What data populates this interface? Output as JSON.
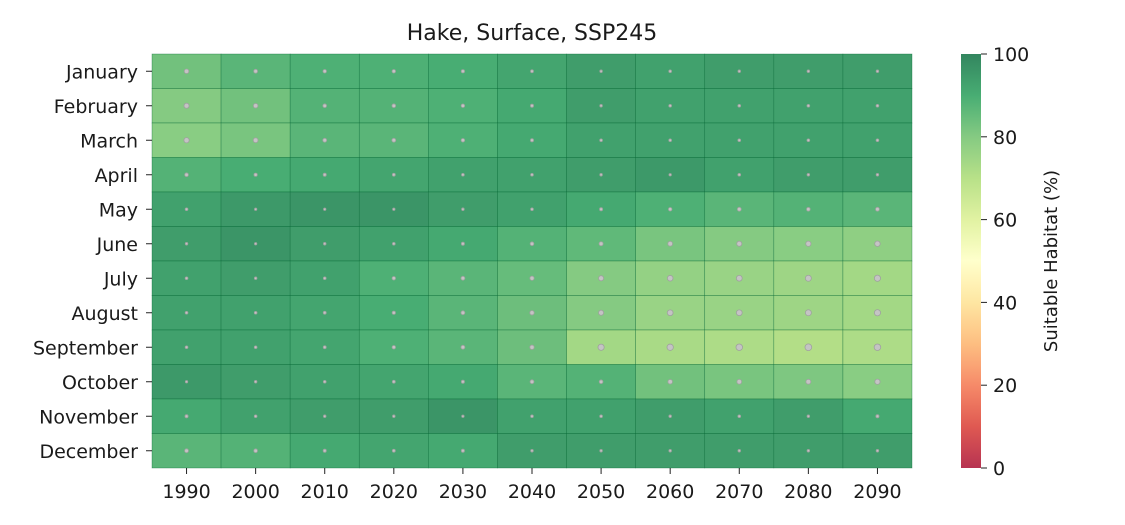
{
  "chart_data": {
    "type": "heatmap",
    "title": "Hake, Surface, SSP245",
    "x_labels": [
      "1990",
      "2000",
      "2010",
      "2020",
      "2030",
      "2040",
      "2050",
      "2060",
      "2070",
      "2080",
      "2090"
    ],
    "y_labels": [
      "January",
      "February",
      "March",
      "April",
      "May",
      "June",
      "July",
      "August",
      "September",
      "October",
      "November",
      "December"
    ],
    "values": [
      [
        83,
        87,
        89,
        89,
        90,
        92,
        94,
        93,
        94,
        94,
        94
      ],
      [
        80,
        83,
        88,
        88,
        89,
        91,
        94,
        93,
        93,
        93,
        93
      ],
      [
        79,
        82,
        87,
        87,
        89,
        91,
        93,
        93,
        93,
        93,
        93
      ],
      [
        88,
        90,
        91,
        92,
        93,
        93,
        94,
        95,
        93,
        94,
        94
      ],
      [
        93,
        95,
        96,
        96,
        94,
        93,
        91,
        89,
        87,
        88,
        87
      ],
      [
        94,
        96,
        94,
        93,
        91,
        88,
        86,
        82,
        80,
        79,
        78
      ],
      [
        93,
        94,
        93,
        89,
        87,
        85,
        80,
        77,
        76,
        75,
        74
      ],
      [
        93,
        93,
        92,
        90,
        87,
        84,
        80,
        76,
        76,
        75,
        74
      ],
      [
        93,
        93,
        92,
        89,
        87,
        84,
        74,
        73,
        72,
        71,
        72
      ],
      [
        95,
        94,
        93,
        92,
        91,
        87,
        88,
        83,
        82,
        81,
        79
      ],
      [
        91,
        93,
        94,
        94,
        96,
        93,
        93,
        94,
        93,
        94,
        91
      ],
      [
        87,
        88,
        91,
        92,
        91,
        94,
        94,
        94,
        94,
        94,
        94
      ]
    ],
    "colorbar": {
      "label": "Suitable Habitat (%)",
      "min": 0,
      "max": 100,
      "ticks": [
        0,
        20,
        40,
        60,
        80,
        100
      ],
      "colormap": "RdYlGn"
    },
    "marker_color": "#a0a0a0",
    "grid": false
  }
}
